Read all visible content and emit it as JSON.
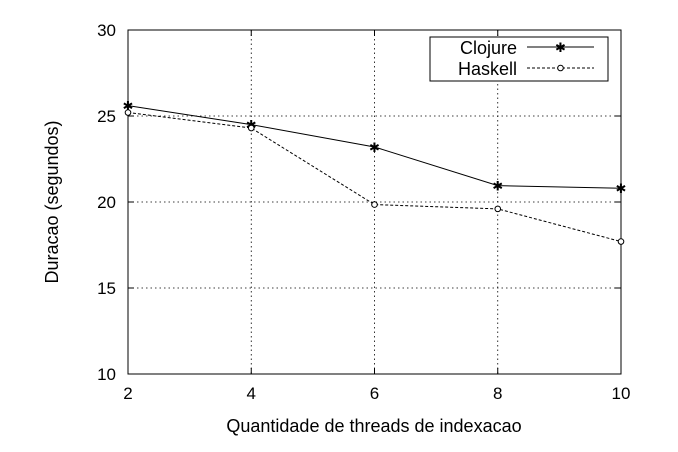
{
  "chart_data": {
    "type": "line",
    "title": "",
    "xlabel": "Quantidade de threads de indexacao",
    "ylabel": "Duracao (segundos)",
    "x": [
      2,
      4,
      6,
      8,
      10
    ],
    "xlim": [
      2,
      10
    ],
    "ylim": [
      10,
      30
    ],
    "xticks": [
      2,
      4,
      6,
      8,
      10
    ],
    "yticks": [
      10,
      15,
      20,
      25,
      30
    ],
    "grid": true,
    "legend_position": "top-right",
    "series": [
      {
        "name": "Clojure",
        "values": [
          25.6,
          24.5,
          23.2,
          20.95,
          20.8
        ],
        "marker": "asterisk",
        "line": "solid",
        "color": "#000000"
      },
      {
        "name": "Haskell",
        "values": [
          25.2,
          24.3,
          19.85,
          19.6,
          17.7
        ],
        "marker": "circle",
        "line": "dashed",
        "color": "#000000"
      }
    ]
  }
}
